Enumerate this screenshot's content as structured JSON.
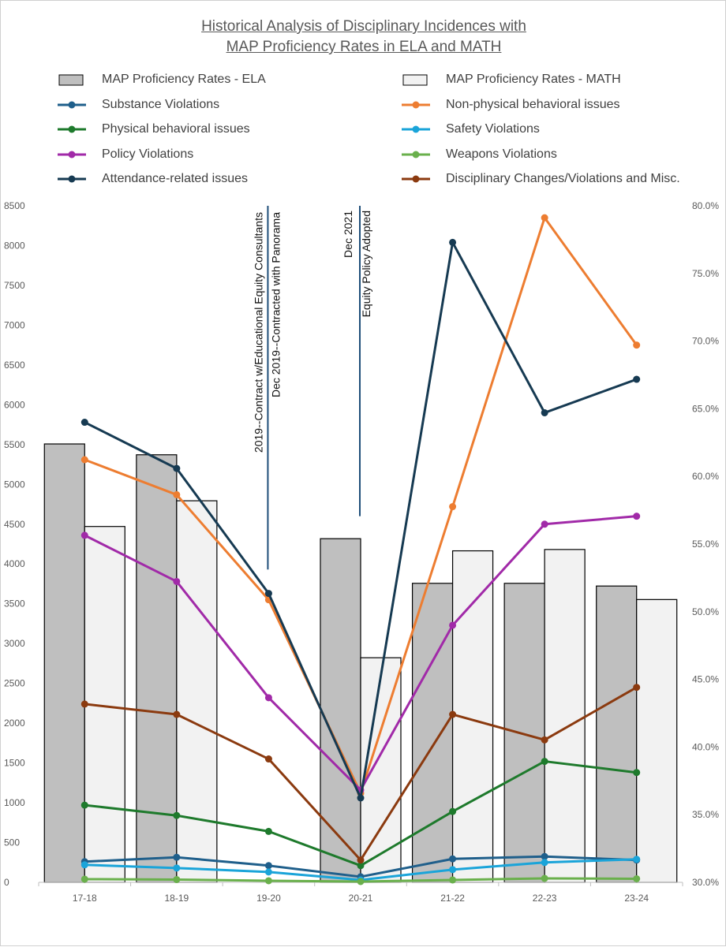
{
  "chart_data": {
    "type": "bar",
    "title_lines": [
      "Historical Analysis of Disciplinary Incidences with",
      "MAP Proficiency Rates in ELA and MATH"
    ],
    "categories": [
      "17-18",
      "18-19",
      "19-20",
      "20-21",
      "21-22",
      "22-23",
      "23-24"
    ],
    "left_axis": {
      "range": [
        0,
        8500
      ],
      "ticks": [
        "0",
        "500",
        "1000",
        "1500",
        "2000",
        "2500",
        "3000",
        "3500",
        "4000",
        "4500",
        "5000",
        "5500",
        "6000",
        "6500",
        "7000",
        "7500",
        "8000",
        "8500"
      ]
    },
    "right_axis": {
      "range": [
        30.0,
        80.0
      ],
      "unit": "%",
      "ticks": [
        "30.0%",
        "35.0%",
        "40.0%",
        "45.0%",
        "50.0%",
        "55.0%",
        "60.0%",
        "65.0%",
        "70.0%",
        "75.0%",
        "80.0%"
      ]
    },
    "bar_series": [
      {
        "name": "MAP Proficiency Rates - ELA",
        "color": "#bfbfbf",
        "axis": "right",
        "values": [
          62.4,
          61.6,
          null,
          55.4,
          52.1,
          52.1,
          51.9
        ]
      },
      {
        "name": "MAP Proficiency Rates - MATH",
        "color": "#f2f2f2",
        "axis": "right",
        "values": [
          56.3,
          58.2,
          null,
          46.6,
          54.5,
          54.6,
          50.9
        ]
      }
    ],
    "line_series": [
      {
        "name": "Substance Violations",
        "color": "#1f5f8b",
        "axis": "left",
        "values": [
          260,
          315,
          210,
          70,
          295,
          325,
          280
        ]
      },
      {
        "name": "Non-physical behavioral issues",
        "color": "#ed7d31",
        "axis": "left",
        "values": [
          5310,
          4870,
          3550,
          1120,
          4720,
          8350,
          6750
        ]
      },
      {
        "name": "Physical behavioral issues",
        "color": "#1e7a2c",
        "axis": "left",
        "values": [
          970,
          840,
          640,
          210,
          890,
          1520,
          1380
        ]
      },
      {
        "name": "Safety Violations",
        "color": "#1aa4d9",
        "axis": "left",
        "values": [
          220,
          180,
          130,
          30,
          160,
          250,
          290
        ]
      },
      {
        "name": "Policy Violations",
        "color": "#a12aa8",
        "axis": "left",
        "values": [
          4360,
          3780,
          2320,
          1160,
          3230,
          4500,
          4600
        ]
      },
      {
        "name": "Weapons Violations",
        "color": "#6ab04c",
        "axis": "left",
        "values": [
          40,
          35,
          20,
          10,
          30,
          50,
          45
        ]
      },
      {
        "name": "Attendance-related issues",
        "color": "#163a52",
        "axis": "left",
        "values": [
          5780,
          5200,
          3630,
          1060,
          8040,
          5900,
          6320
        ]
      },
      {
        "name": "Disciplinary Changes/Violations and Misc.",
        "color": "#8b3a0f",
        "axis": "left",
        "values": [
          2240,
          2110,
          1550,
          280,
          2110,
          1790,
          2450
        ]
      }
    ],
    "annotations": [
      {
        "category": "19-20",
        "from": 3930,
        "to": 8500,
        "lines": [
          "2019--Contract w/Educational Equity Consultants",
          "Dec 2019--Contracted with Panorama"
        ]
      },
      {
        "category": "20-21",
        "from": 4600,
        "to": 8500,
        "lines": [
          "Dec 2021",
          "Equity Policy Adopted"
        ]
      }
    ],
    "legend_placement": "top",
    "grid": false
  }
}
